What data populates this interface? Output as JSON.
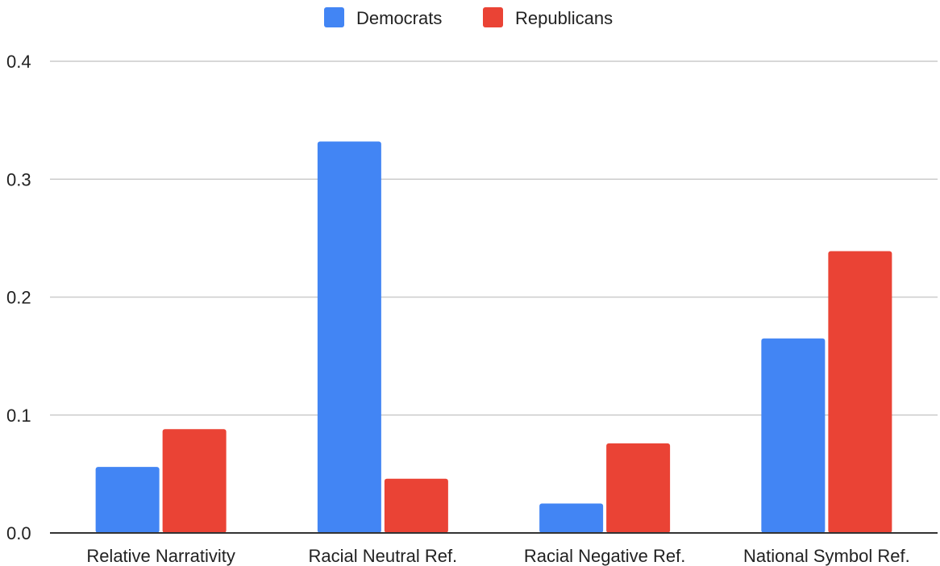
{
  "chart_data": {
    "type": "bar",
    "categories": [
      "Relative Narrativity",
      "Racial Neutral Ref.",
      "Racial Negative Ref.",
      "National Symbol Ref."
    ],
    "series": [
      {
        "name": "Democrats",
        "color": "#4285f4",
        "values": [
          0.056,
          0.332,
          0.025,
          0.165
        ]
      },
      {
        "name": "Republicans",
        "color": "#ea4335",
        "values": [
          0.088,
          0.046,
          0.076,
          0.239
        ]
      }
    ],
    "title": "",
    "xlabel": "",
    "ylabel": "",
    "ylim": [
      0,
      0.4
    ],
    "yticks": [
      "0.0",
      "0.1",
      "0.2",
      "0.3",
      "0.4"
    ],
    "grid": true,
    "legend_position": "top-center"
  }
}
